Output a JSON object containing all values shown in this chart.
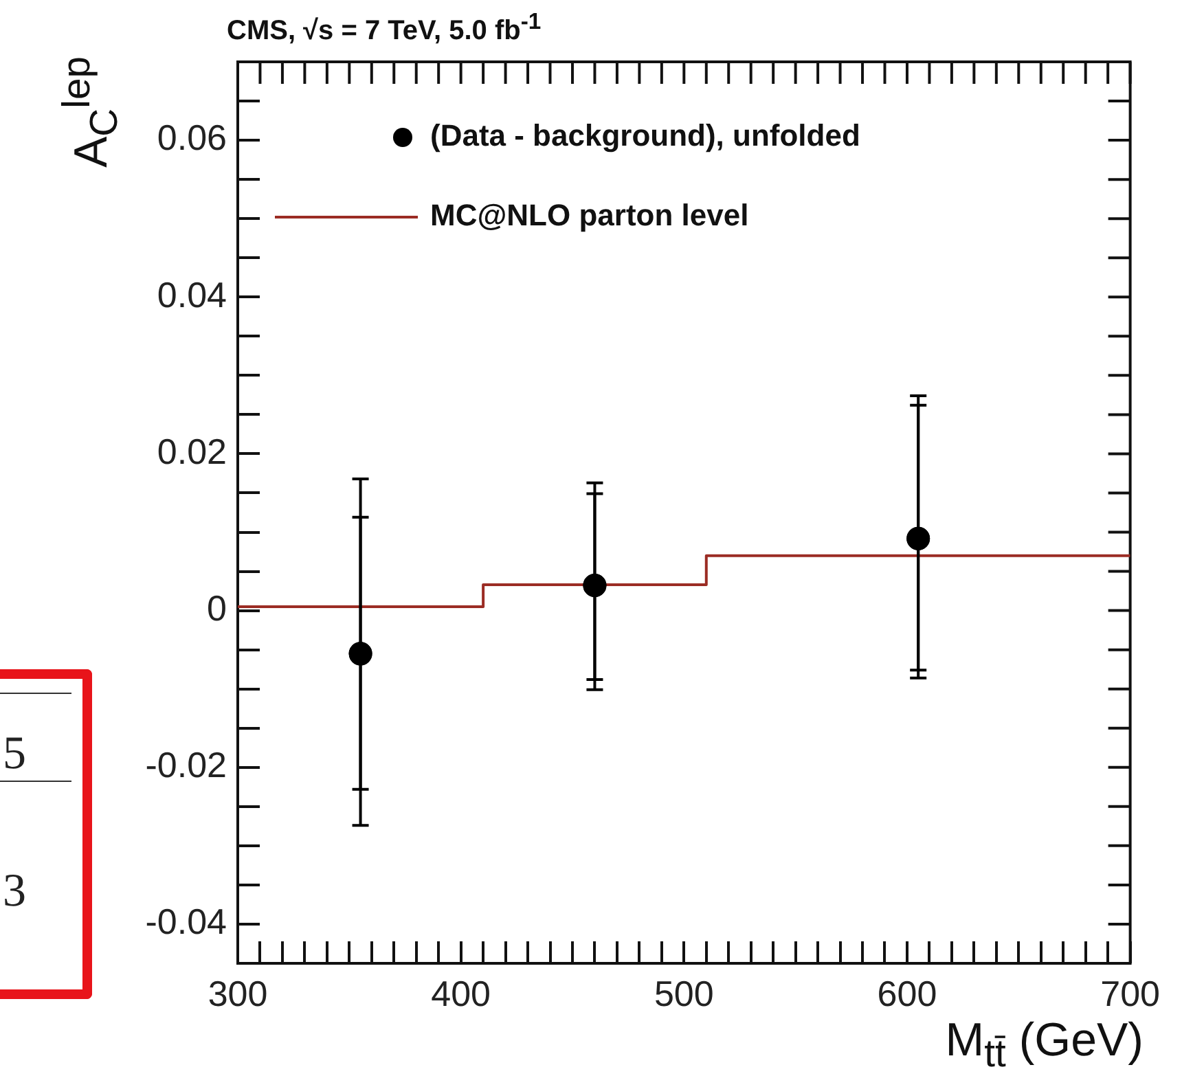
{
  "chart_data": {
    "type": "scatter",
    "title": "CMS, √s = 7 TeV, 5.0 fb$^{-1}$",
    "xlabel": "M$_{tt̄}$ (GeV)",
    "ylabel": "A$_{C}$$^{lep}$",
    "xlim": [
      300,
      700
    ],
    "ylim": [
      -0.045,
      0.07
    ],
    "xticks": [
      300,
      {
        "value": 310,
        "label": null
      },
      {
        "value": 320,
        "label": null
      },
      {
        "value": 330,
        "label": null
      },
      {
        "value": 340,
        "label": null
      },
      {
        "value": 350,
        "label": null
      },
      {
        "value": 360,
        "label": null
      },
      {
        "value": 370,
        "label": null
      },
      {
        "value": 380,
        "label": null
      },
      {
        "value": 390,
        "label": null
      },
      400,
      {
        "value": 410,
        "label": null
      },
      {
        "value": 420,
        "label": null
      },
      {
        "value": 430,
        "label": null
      },
      {
        "value": 440,
        "label": null
      },
      {
        "value": 450,
        "label": null
      },
      {
        "value": 460,
        "label": null
      },
      {
        "value": 470,
        "label": null
      },
      {
        "value": 480,
        "label": null
      },
      {
        "value": 490,
        "label": null
      },
      500,
      {
        "value": 510,
        "label": null
      },
      {
        "value": 520,
        "label": null
      },
      {
        "value": 530,
        "label": null
      },
      {
        "value": 540,
        "label": null
      },
      {
        "value": 550,
        "label": null
      },
      {
        "value": 560,
        "label": null
      },
      {
        "value": 570,
        "label": null
      },
      {
        "value": 580,
        "label": null
      },
      {
        "value": 590,
        "label": null
      },
      600,
      {
        "value": 610,
        "label": null
      },
      {
        "value": 620,
        "label": null
      },
      {
        "value": 630,
        "label": null
      },
      {
        "value": 640,
        "label": null
      },
      {
        "value": 650,
        "label": null
      },
      {
        "value": 660,
        "label": null
      },
      {
        "value": 670,
        "label": null
      },
      {
        "value": 680,
        "label": null
      },
      {
        "value": 690,
        "label": null
      },
      700
    ],
    "yticks": [
      -0.04,
      {
        "value": -0.035,
        "label": null
      },
      {
        "value": -0.03,
        "label": null
      },
      {
        "value": -0.025,
        "label": null
      },
      -0.02,
      {
        "value": -0.015,
        "label": null
      },
      {
        "value": -0.01,
        "label": null
      },
      {
        "value": -0.005,
        "label": null
      },
      0,
      {
        "value": 0.005,
        "label": null
      },
      {
        "value": 0.01,
        "label": null
      },
      {
        "value": 0.015,
        "label": null
      },
      0.02,
      {
        "value": 0.025,
        "label": null
      },
      {
        "value": 0.03,
        "label": null
      },
      {
        "value": 0.035,
        "label": null
      },
      0.04,
      {
        "value": 0.045,
        "label": null
      },
      {
        "value": 0.05,
        "label": null
      },
      {
        "value": 0.055,
        "label": null
      },
      0.06,
      {
        "value": 0.065,
        "label": null
      }
    ],
    "grid": false,
    "legend": "top left",
    "series": [
      {
        "name": "(Data - background), unfolded",
        "marker": "circle",
        "color": "#000000",
        "x": [
          355,
          460,
          605
        ],
        "values": [
          -0.0055,
          0.0032,
          0.0092
        ],
        "errors": [
          [
            -0.0274,
            0.0168
          ],
          [
            -0.0101,
            0.0163
          ],
          [
            -0.0086,
            0.0274
          ]
        ]
      },
      {
        "marker": "circle",
        "color": "#000000",
        "x": [
          355,
          460,
          605
        ],
        "values": [
          -0.0055,
          0.0032,
          0.0092
        ],
        "errors": [
          [
            -0.0228,
            0.0119
          ],
          [
            -0.0088,
            0.0149
          ],
          [
            -0.0076,
            0.0262
          ]
        ]
      },
      {
        "name": "MC@NLO parton level",
        "type": "step",
        "marker": "none",
        "color": "#9b2c24",
        "x": [
          300,
          410,
          510,
          700
        ],
        "values": [
          0.0005,
          0.0033,
          0.007,
          0.007
        ]
      }
    ],
    "annotations": [
      "5",
      "3"
    ]
  }
}
